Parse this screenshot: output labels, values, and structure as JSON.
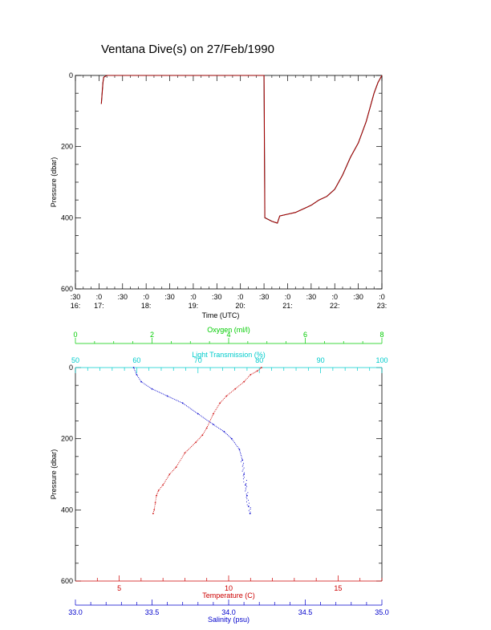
{
  "chart_data": [
    {
      "type": "line",
      "title": "Ventana Dive(s) on 27/Feb/1990",
      "xlabel": "Time (UTC)",
      "ylabel": "Pressure (dbar)",
      "ylim": [
        600,
        0
      ],
      "yticks": [
        "0",
        "200",
        "400",
        "600"
      ],
      "xlim": [
        "16:30",
        "23:00"
      ],
      "xticks_top": [
        ":30",
        ":0",
        ":30",
        ":0",
        ":30",
        ":0",
        ":30",
        ":0",
        ":30",
        ":0",
        ":30",
        ":0",
        ":30",
        ":0"
      ],
      "xticks_bottom": [
        "16:",
        "17:",
        "",
        "18:",
        "",
        "19:",
        "",
        "20:",
        "",
        "21:",
        "",
        "22:",
        "",
        "23:"
      ],
      "series": [
        {
          "color": "#cc0000",
          "x": [
            "17:03",
            "17:04",
            "17:05",
            "17:06",
            "17:10",
            "17:30",
            "18:00",
            "19:00",
            "20:00",
            "20:30",
            "20:31",
            "20:40",
            "20:47",
            "20:50",
            "21:00",
            "21:10",
            "21:20",
            "21:30",
            "21:40",
            "21:50",
            "22:00",
            "22:10",
            "22:20",
            "22:30",
            "22:35",
            "22:40",
            "22:45",
            "22:50",
            "22:55",
            "23:00"
          ],
          "y": [
            80,
            50,
            20,
            5,
            0,
            0,
            0,
            0,
            0,
            0,
            400,
            410,
            415,
            395,
            390,
            385,
            375,
            365,
            350,
            340,
            320,
            280,
            230,
            190,
            160,
            130,
            90,
            50,
            20,
            0
          ]
        }
      ]
    },
    {
      "type": "scatter",
      "ylabel": "Pressure (dbar)",
      "ylim": [
        600,
        0
      ],
      "yticks": [
        "0",
        "200",
        "400",
        "600"
      ],
      "axes": [
        {
          "name": "oxygen",
          "label": "Oxygen (ml/l)",
          "color": "#00cc00",
          "range": [
            0,
            8
          ],
          "ticks": [
            "0",
            "2",
            "4",
            "6",
            "8"
          ]
        },
        {
          "name": "transmission",
          "label": "Light Transmission (%)",
          "color": "#00cccc",
          "range": [
            50,
            100
          ],
          "ticks": [
            "50",
            "60",
            "70",
            "80",
            "90",
            "100"
          ]
        },
        {
          "name": "temperature",
          "label": "Temperature (C)",
          "color": "#cc0000",
          "range": [
            3,
            17
          ],
          "ticks": [
            "5",
            "10",
            "15"
          ]
        },
        {
          "name": "salinity",
          "label": "Salinity (psu)",
          "color": "#0000cc",
          "range": [
            33.0,
            35.0
          ],
          "ticks": [
            "33.0",
            "33.5",
            "34.0",
            "34.5",
            "35.0"
          ]
        }
      ],
      "series": [
        {
          "axis": "temperature",
          "color": "#cc0000",
          "points": [
            [
              11.5,
              0
            ],
            [
              11.3,
              10
            ],
            [
              11.0,
              20
            ],
            [
              10.7,
              40
            ],
            [
              10.3,
              60
            ],
            [
              9.9,
              80
            ],
            [
              9.6,
              100
            ],
            [
              9.3,
              130
            ],
            [
              9.0,
              170
            ],
            [
              8.8,
              190
            ],
            [
              8.5,
              210
            ],
            [
              8.0,
              240
            ],
            [
              7.6,
              280
            ],
            [
              7.3,
              300
            ],
            [
              7.0,
              330
            ],
            [
              6.8,
              345
            ],
            [
              6.7,
              360
            ],
            [
              6.65,
              380
            ],
            [
              6.6,
              400
            ],
            [
              6.55,
              410
            ]
          ]
        },
        {
          "axis": "salinity",
          "color": "#0000cc",
          "points": [
            [
              33.38,
              0
            ],
            [
              33.4,
              20
            ],
            [
              33.43,
              40
            ],
            [
              33.5,
              60
            ],
            [
              33.6,
              80
            ],
            [
              33.7,
              100
            ],
            [
              33.8,
              130
            ],
            [
              33.9,
              160
            ],
            [
              33.97,
              180
            ],
            [
              34.02,
              200
            ],
            [
              34.07,
              230
            ],
            [
              34.09,
              260
            ],
            [
              34.1,
              300
            ],
            [
              34.11,
              330
            ],
            [
              34.12,
              360
            ],
            [
              34.13,
              390
            ],
            [
              34.14,
              410
            ]
          ]
        }
      ]
    }
  ]
}
